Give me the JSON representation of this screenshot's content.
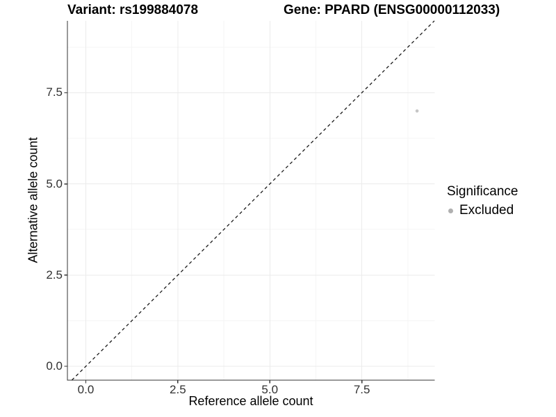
{
  "chart_data": {
    "type": "scatter",
    "titles": {
      "left": "Variant: rs199884078",
      "right": "Gene: PPARD (ENSG00000112033)"
    },
    "xlabel": "Reference allele count",
    "ylabel": "Alternative allele count",
    "xlim": [
      -0.5,
      9.48
    ],
    "ylim": [
      -0.38,
      9.47
    ],
    "x_ticks": {
      "values": [
        0,
        2.5,
        5,
        7.5
      ],
      "labels": [
        "0.0",
        "2.5",
        "5.0",
        "7.5"
      ]
    },
    "y_ticks": {
      "values": [
        0,
        2.5,
        5,
        7.5
      ],
      "labels": [
        "0.0",
        "2.5",
        "5.0",
        "7.5"
      ]
    },
    "x_minor": [
      1.25,
      3.75,
      6.25,
      8.75
    ],
    "y_minor": [
      1.25,
      3.75,
      6.25,
      8.75
    ],
    "grid": true,
    "reference_line": {
      "kind": "identity",
      "style": "dashed",
      "color": "#1a1a1a"
    },
    "series": [
      {
        "name": "Excluded",
        "color": "#c5c5c5",
        "points": [
          {
            "x": 9,
            "y": 7
          }
        ]
      }
    ],
    "point_radius": 2.3,
    "legend": {
      "title": "Significance",
      "position": "right",
      "items": [
        {
          "label": "Excluded",
          "color": "#b0b0b0"
        }
      ]
    },
    "colors": {
      "grid_major": "#ebebeb",
      "grid_minor": "#f5f5f5",
      "axis": "#333333",
      "tick_text": "#303030",
      "background": "#ffffff"
    }
  }
}
